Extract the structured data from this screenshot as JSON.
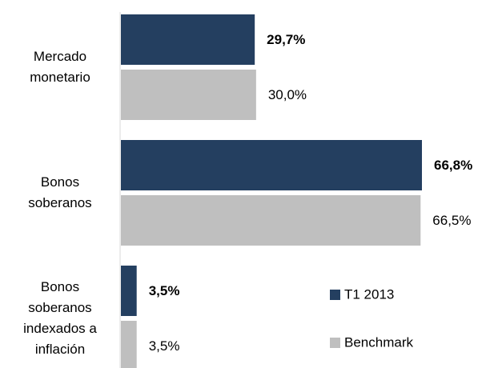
{
  "chart_data": {
    "type": "bar",
    "orientation": "horizontal",
    "categories": [
      "Mercado monetario",
      "Bonos soberanos",
      "Bonos soberanos indexados a inflación"
    ],
    "series": [
      {
        "name": "T1 2013",
        "color": "#243f60",
        "values": [
          29.7,
          66.8,
          3.5
        ],
        "value_labels": [
          "29,7%",
          "66,8%",
          "3,5%"
        ]
      },
      {
        "name": "Benchmark",
        "color": "#bfbfbf",
        "values": [
          30.0,
          66.5,
          3.5
        ],
        "value_labels": [
          "30,0%",
          "66,5%",
          "3,5%"
        ]
      }
    ],
    "xlim": [
      0,
      70
    ],
    "legend": "lower-right"
  }
}
